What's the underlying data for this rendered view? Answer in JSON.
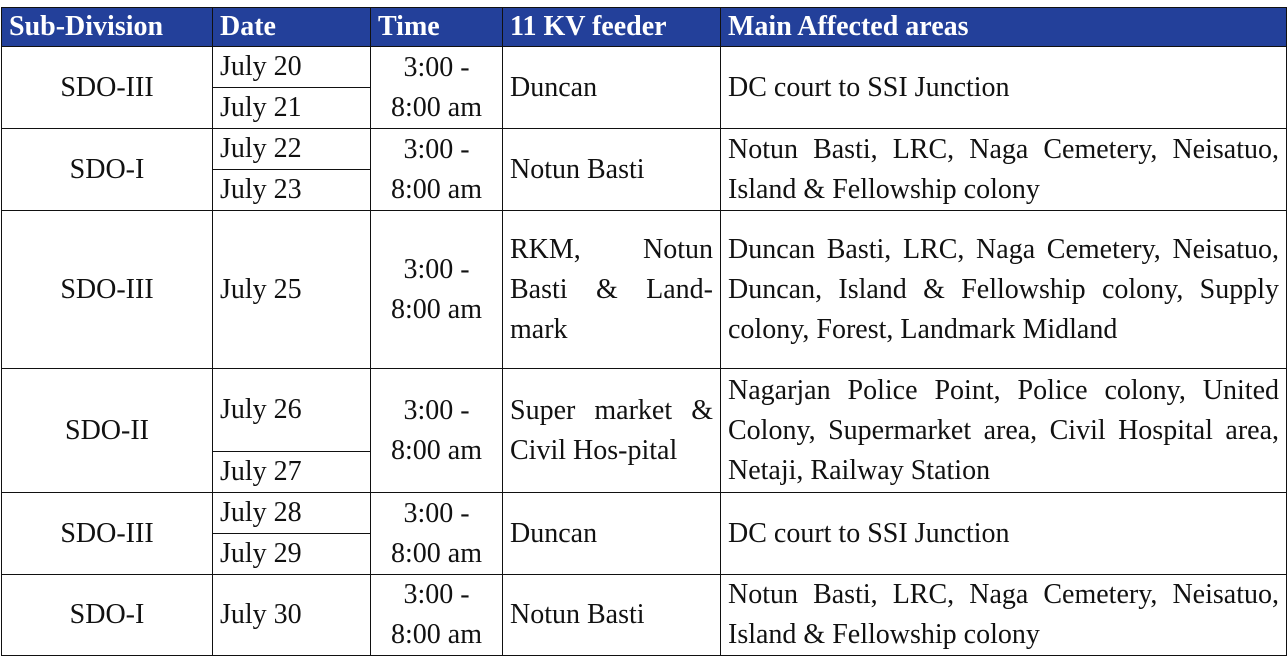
{
  "header_color": "#23409a",
  "headers": [
    "Sub-Division",
    "Date",
    "Time",
    "11 KV feeder",
    "Main Affected areas"
  ],
  "rows": [
    {
      "sub": "SDO-III",
      "dates": [
        "July 20",
        "July 21"
      ],
      "time": "3:00 - 8:00 am",
      "feeder": "Duncan",
      "areas": "DC court to SSI Junction"
    },
    {
      "sub": "SDO-I",
      "dates": [
        "July 22",
        "July 23"
      ],
      "time": "3:00 - 8:00 am",
      "feeder": "Notun Basti",
      "areas": "Notun Basti, LRC, Naga Cemetery, Neisatuo, Island & Fellowship colony"
    },
    {
      "sub": "SDO-III",
      "dates": [
        "July 25"
      ],
      "time": "3:00 - 8:00 am",
      "feeder": "RKM, Notun Basti & Land-mark",
      "areas": "Duncan Basti, LRC, Naga Cemetery, Neisatuo, Duncan, Island & Fellowship colony, Supply colony, Forest, Landmark Midland"
    },
    {
      "sub": "SDO-II",
      "dates": [
        "July 26",
        "July 27"
      ],
      "time": "3:00 - 8:00 am",
      "feeder": "Super market & Civil Hos-pital",
      "areas": "Nagarjan Police Point, Police colony, United Colony, Supermarket area, Civil Hospital area, Netaji, Railway Station"
    },
    {
      "sub": "SDO-III",
      "dates": [
        "July 28",
        "July 29"
      ],
      "time": "3:00 - 8:00 am",
      "feeder": "Duncan",
      "areas": "DC court to SSI Junction"
    },
    {
      "sub": "SDO-I",
      "dates": [
        "July 30"
      ],
      "time": "3:00 - 8:00 am",
      "feeder": "Notun Basti",
      "areas": "Notun Basti, LRC, Naga Cemetery, Neisatuo,  Island & Fellowship colony"
    }
  ]
}
